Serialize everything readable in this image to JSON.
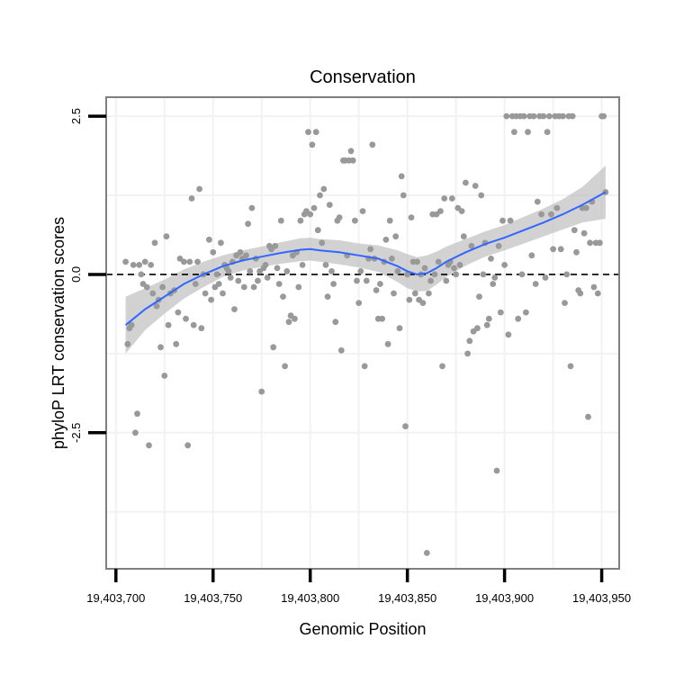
{
  "chart_data": {
    "type": "scatter",
    "title": "Conservation",
    "xlabel": "Genomic Position",
    "ylabel": "phyloP LRT conservation scores",
    "xlim": [
      19403695,
      19403959
    ],
    "ylim": [
      -4.65,
      2.8
    ],
    "x_ticks": [
      19403700,
      19403750,
      19403800,
      19403850,
      19403900,
      19403950
    ],
    "x_tick_labels": [
      "19,403,700",
      "19,403,750",
      "19,403,800",
      "19,403,850",
      "19,403,900",
      "19,403,950"
    ],
    "y_ticks": [
      2.5,
      0.0,
      -2.5
    ],
    "y_tick_labels": [
      "2.5",
      "0.0",
      "-2.5"
    ],
    "reference_line_y": 0,
    "grid": true,
    "colors": {
      "points": "#999999",
      "smooth_line": "#3366FF",
      "confidence_band": "#BFBFBF",
      "panel_border": "#7F7F7F",
      "grid": "#F2F2F2"
    },
    "points": [
      [
        19403705,
        0.2
      ],
      [
        19403706,
        -1.1
      ],
      [
        19403707,
        -0.85
      ],
      [
        19403708,
        -0.8
      ],
      [
        19403709,
        0.15
      ],
      [
        19403710,
        -2.5
      ],
      [
        19403711,
        -2.2
      ],
      [
        19403712,
        0.15
      ],
      [
        19403713,
        0.0
      ],
      [
        19403714,
        -0.15
      ],
      [
        19403715,
        0.2
      ],
      [
        19403716,
        -0.2
      ],
      [
        19403717,
        -2.7
      ],
      [
        19403718,
        0.15
      ],
      [
        19403719,
        -0.3
      ],
      [
        19403720,
        0.5
      ],
      [
        19403721,
        -0.5
      ],
      [
        19403722,
        -0.4
      ],
      [
        19403723,
        -1.15
      ],
      [
        19403724,
        -0.2
      ],
      [
        19403725,
        -1.6
      ],
      [
        19403726,
        0.6
      ],
      [
        19403727,
        -0.8
      ],
      [
        19403728,
        -0.3
      ],
      [
        19403730,
        -0.25
      ],
      [
        19403731,
        -1.1
      ],
      [
        19403732,
        -0.6
      ],
      [
        19403733,
        0.25
      ],
      [
        19403735,
        0.2
      ],
      [
        19403736,
        -0.7
      ],
      [
        19403737,
        -2.7
      ],
      [
        19403738,
        0.2
      ],
      [
        19403739,
        1.2
      ],
      [
        19403740,
        -0.8
      ],
      [
        19403741,
        -0.15
      ],
      [
        19403742,
        0.2
      ],
      [
        19403743,
        1.35
      ],
      [
        19403744,
        -0.85
      ],
      [
        19403745,
        0.0
      ],
      [
        19403746,
        -0.3
      ],
      [
        19403748,
        0.55
      ],
      [
        19403749,
        -0.4
      ],
      [
        19403750,
        0.35
      ],
      [
        19403751,
        -0.2
      ],
      [
        19403752,
        0.0
      ],
      [
        19403753,
        -0.15
      ],
      [
        19403754,
        0.5
      ],
      [
        19403755,
        -0.3
      ],
      [
        19403756,
        0.15
      ],
      [
        19403757,
        0.1
      ],
      [
        19403758,
        0.05
      ],
      [
        19403759,
        -0.05
      ],
      [
        19403760,
        0.2
      ],
      [
        19403761,
        -0.55
      ],
      [
        19403762,
        0.3
      ],
      [
        19403763,
        -0.1
      ],
      [
        19403764,
        0.35
      ],
      [
        19403765,
        0.25
      ],
      [
        19403766,
        -0.2
      ],
      [
        19403767,
        0.3
      ],
      [
        19403768,
        0.8
      ],
      [
        19403769,
        0.05
      ],
      [
        19403770,
        1.05
      ],
      [
        19403771,
        -0.2
      ],
      [
        19403772,
        0.25
      ],
      [
        19403773,
        -0.1
      ],
      [
        19403774,
        0.05
      ],
      [
        19403775,
        -1.85
      ],
      [
        19403776,
        0.1
      ],
      [
        19403777,
        0.15
      ],
      [
        19403778,
        -0.05
      ],
      [
        19403779,
        0.45
      ],
      [
        19403780,
        0.4
      ],
      [
        19403781,
        -1.15
      ],
      [
        19403782,
        0.45
      ],
      [
        19403783,
        0.1
      ],
      [
        19403784,
        -0.15
      ],
      [
        19403785,
        0.85
      ],
      [
        19403786,
        -0.35
      ],
      [
        19403787,
        -1.45
      ],
      [
        19403788,
        0.05
      ],
      [
        19403789,
        -0.75
      ],
      [
        19403790,
        -0.65
      ],
      [
        19403791,
        0.3
      ],
      [
        19403792,
        -0.7
      ],
      [
        19403793,
        0.35
      ],
      [
        19403794,
        -0.2
      ],
      [
        19403795,
        0.85
      ],
      [
        19403796,
        0.15
      ],
      [
        19403797,
        0.95
      ],
      [
        19403798,
        1.0
      ],
      [
        19403799,
        2.25
      ],
      [
        19403800,
        0.95
      ],
      [
        19403801,
        2.05
      ],
      [
        19403802,
        1.05
      ],
      [
        19403803,
        2.25
      ],
      [
        19403804,
        0.7
      ],
      [
        19403805,
        1.25
      ],
      [
        19403806,
        0.5
      ],
      [
        19403807,
        1.35
      ],
      [
        19403808,
        0.15
      ],
      [
        19403809,
        -0.35
      ],
      [
        19403810,
        1.1
      ],
      [
        19403811,
        0.05
      ],
      [
        19403812,
        -0.15
      ],
      [
        19403813,
        -0.75
      ],
      [
        19403814,
        0.85
      ],
      [
        19403815,
        0.9
      ],
      [
        19403816,
        -1.2
      ],
      [
        19403817,
        1.8
      ],
      [
        19403818,
        1.8
      ],
      [
        19403819,
        0.3
      ],
      [
        19403820,
        1.8
      ],
      [
        19403821,
        1.95
      ],
      [
        19403822,
        1.8
      ],
      [
        19403823,
        0.85
      ],
      [
        19403824,
        -0.1
      ],
      [
        19403825,
        -0.45
      ],
      [
        19403826,
        0.05
      ],
      [
        19403827,
        1.0
      ],
      [
        19403828,
        -1.45
      ],
      [
        19403829,
        -0.1
      ],
      [
        19403830,
        0.25
      ],
      [
        19403831,
        0.4
      ],
      [
        19403832,
        2.05
      ],
      [
        19403833,
        0.25
      ],
      [
        19403834,
        -0.25
      ],
      [
        19403835,
        -0.7
      ],
      [
        19403836,
        -0.15
      ],
      [
        19403837,
        -0.7
      ],
      [
        19403838,
        0.2
      ],
      [
        19403839,
        0.55
      ],
      [
        19403840,
        -1.1
      ],
      [
        19403841,
        0.85
      ],
      [
        19403842,
        0.25
      ],
      [
        19403843,
        -0.3
      ],
      [
        19403844,
        0.6
      ],
      [
        19403845,
        0.05
      ],
      [
        19403846,
        -0.85
      ],
      [
        19403847,
        1.55
      ],
      [
        19403848,
        1.25
      ],
      [
        19403849,
        -2.4
      ],
      [
        19403850,
        0.0
      ],
      [
        19403851,
        -0.4
      ],
      [
        19403852,
        0.9
      ],
      [
        19403853,
        0.2
      ],
      [
        19403854,
        -0.3
      ],
      [
        19403855,
        0.2
      ],
      [
        19403856,
        -0.4
      ],
      [
        19403857,
        0.0
      ],
      [
        19403858,
        -0.45
      ],
      [
        19403859,
        0.1
      ],
      [
        19403860,
        -4.4
      ],
      [
        19403861,
        -0.3
      ],
      [
        19403862,
        -0.1
      ],
      [
        19403863,
        0.95
      ],
      [
        19403864,
        0.0
      ],
      [
        19403865,
        0.95
      ],
      [
        19403866,
        0.2
      ],
      [
        19403867,
        1.0
      ],
      [
        19403868,
        -1.45
      ],
      [
        19403869,
        1.2
      ],
      [
        19403870,
        -0.1
      ],
      [
        19403871,
        0.15
      ],
      [
        19403872,
        0.2
      ],
      [
        19403873,
        1.2
      ],
      [
        19403874,
        0.1
      ],
      [
        19403875,
        0.0
      ],
      [
        19403876,
        1.05
      ],
      [
        19403877,
        0.15
      ],
      [
        19403878,
        1.0
      ],
      [
        19403879,
        0.6
      ],
      [
        19403880,
        1.45
      ],
      [
        19403881,
        -1.25
      ],
      [
        19403882,
        -1.05
      ],
      [
        19403883,
        0.45
      ],
      [
        19403884,
        -0.9
      ],
      [
        19403885,
        1.4
      ],
      [
        19403886,
        -0.85
      ],
      [
        19403887,
        -0.35
      ],
      [
        19403888,
        1.25
      ],
      [
        19403889,
        0.0
      ],
      [
        19403890,
        0.5
      ],
      [
        19403891,
        -0.8
      ],
      [
        19403892,
        -0.7
      ],
      [
        19403893,
        0.25
      ],
      [
        19403894,
        -0.15
      ],
      [
        19403895,
        -0.05
      ],
      [
        19403896,
        -3.1
      ],
      [
        19403897,
        0.45
      ],
      [
        19403898,
        -0.6
      ],
      [
        19403899,
        0.85
      ],
      [
        19403900,
        0.15
      ],
      [
        19403901,
        2.5
      ],
      [
        19403902,
        -0.95
      ],
      [
        19403903,
        0.85
      ],
      [
        19403904,
        2.5
      ],
      [
        19403905,
        2.25
      ],
      [
        19403906,
        2.5
      ],
      [
        19403907,
        -0.7
      ],
      [
        19403908,
        2.5
      ],
      [
        19403909,
        0.0
      ],
      [
        19403910,
        2.5
      ],
      [
        19403911,
        -0.6
      ],
      [
        19403912,
        2.25
      ],
      [
        19403913,
        2.5
      ],
      [
        19403914,
        0.3
      ],
      [
        19403915,
        2.5
      ],
      [
        19403916,
        -0.15
      ],
      [
        19403917,
        1.15
      ],
      [
        19403918,
        2.5
      ],
      [
        19403919,
        0.95
      ],
      [
        19403920,
        2.5
      ],
      [
        19403921,
        -0.05
      ],
      [
        19403922,
        2.25
      ],
      [
        19403923,
        2.5
      ],
      [
        19403924,
        0.95
      ],
      [
        19403925,
        0.4
      ],
      [
        19403926,
        2.5
      ],
      [
        19403927,
        1.05
      ],
      [
        19403928,
        2.5
      ],
      [
        19403929,
        0.4
      ],
      [
        19403930,
        2.5
      ],
      [
        19403931,
        -0.45
      ],
      [
        19403932,
        0.0
      ],
      [
        19403933,
        2.5
      ],
      [
        19403934,
        -1.45
      ],
      [
        19403935,
        2.5
      ],
      [
        19403936,
        0.7
      ],
      [
        19403937,
        0.35
      ],
      [
        19403938,
        -0.25
      ],
      [
        19403939,
        -0.3
      ],
      [
        19403940,
        1.05
      ],
      [
        19403941,
        0.65
      ],
      [
        19403942,
        1.05
      ],
      [
        19403943,
        -2.25
      ],
      [
        19403944,
        0.5
      ],
      [
        19403945,
        1.15
      ],
      [
        19403946,
        -0.2
      ],
      [
        19403947,
        0.5
      ],
      [
        19403948,
        -0.3
      ],
      [
        19403949,
        0.5
      ],
      [
        19403950,
        2.5
      ],
      [
        19403951,
        2.5
      ],
      [
        19403952,
        1.3
      ]
    ],
    "smooth": {
      "x": [
        19403705,
        19403715,
        19403725,
        19403735,
        19403745,
        19403755,
        19403765,
        19403775,
        19403785,
        19403795,
        19403800,
        19403805,
        19403815,
        19403825,
        19403835,
        19403845,
        19403850,
        19403855,
        19403860,
        19403865,
        19403870,
        19403880,
        19403890,
        19403900,
        19403910,
        19403920,
        19403930,
        19403940,
        19403952
      ],
      "y": [
        -0.8,
        -0.55,
        -0.35,
        -0.15,
        0.0,
        0.13,
        0.22,
        0.28,
        0.34,
        0.39,
        0.4,
        0.38,
        0.35,
        0.3,
        0.25,
        0.13,
        0.05,
        0.0,
        0.02,
        0.1,
        0.2,
        0.35,
        0.48,
        0.58,
        0.7,
        0.82,
        0.95,
        1.1,
        1.3
      ],
      "lower": [
        -1.25,
        -0.88,
        -0.62,
        -0.38,
        -0.2,
        -0.04,
        0.06,
        0.12,
        0.17,
        0.21,
        0.22,
        0.2,
        0.16,
        0.11,
        0.04,
        -0.12,
        -0.22,
        -0.27,
        -0.26,
        -0.16,
        -0.04,
        0.14,
        0.28,
        0.38,
        0.49,
        0.6,
        0.71,
        0.82,
        0.88
      ],
      "upper": [
        -0.35,
        -0.22,
        -0.08,
        0.08,
        0.2,
        0.3,
        0.38,
        0.44,
        0.51,
        0.57,
        0.58,
        0.56,
        0.54,
        0.49,
        0.46,
        0.38,
        0.32,
        0.27,
        0.3,
        0.36,
        0.44,
        0.56,
        0.68,
        0.78,
        0.91,
        1.04,
        1.19,
        1.38,
        1.72
      ]
    }
  }
}
